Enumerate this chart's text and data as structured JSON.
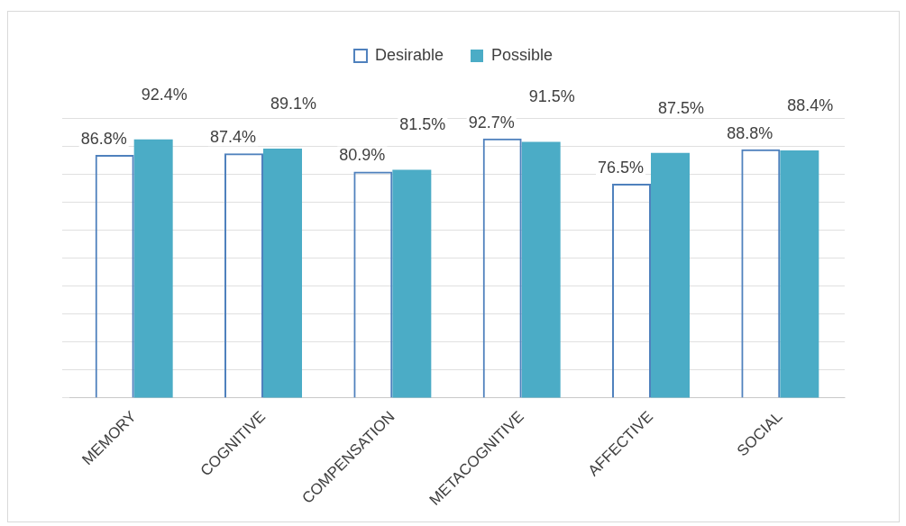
{
  "chart_data": {
    "type": "bar",
    "categories": [
      "MEMORY",
      "COGNITIVE",
      "COMPENSATION",
      "METACOGNITIVE",
      "AFFECTIVE",
      "SOCIAL"
    ],
    "series": [
      {
        "name": "Desirable",
        "color": "#4f81bd",
        "values": [
          86.8,
          87.4,
          80.9,
          92.7,
          76.5,
          88.8
        ],
        "value_labels": [
          "86.8%",
          "87.4%",
          "80.9%",
          "92.7%",
          "76.5%",
          "88.8%"
        ]
      },
      {
        "name": "Possible",
        "color": "#4bacc6",
        "values": [
          92.4,
          89.1,
          81.5,
          91.5,
          87.5,
          88.4
        ],
        "value_labels": [
          "92.4%",
          "89.1%",
          "81.5%",
          "91.5%",
          "87.5%",
          "88.4%"
        ]
      }
    ],
    "relative": false,
    "grid": "y",
    "legend": "top"
  }
}
